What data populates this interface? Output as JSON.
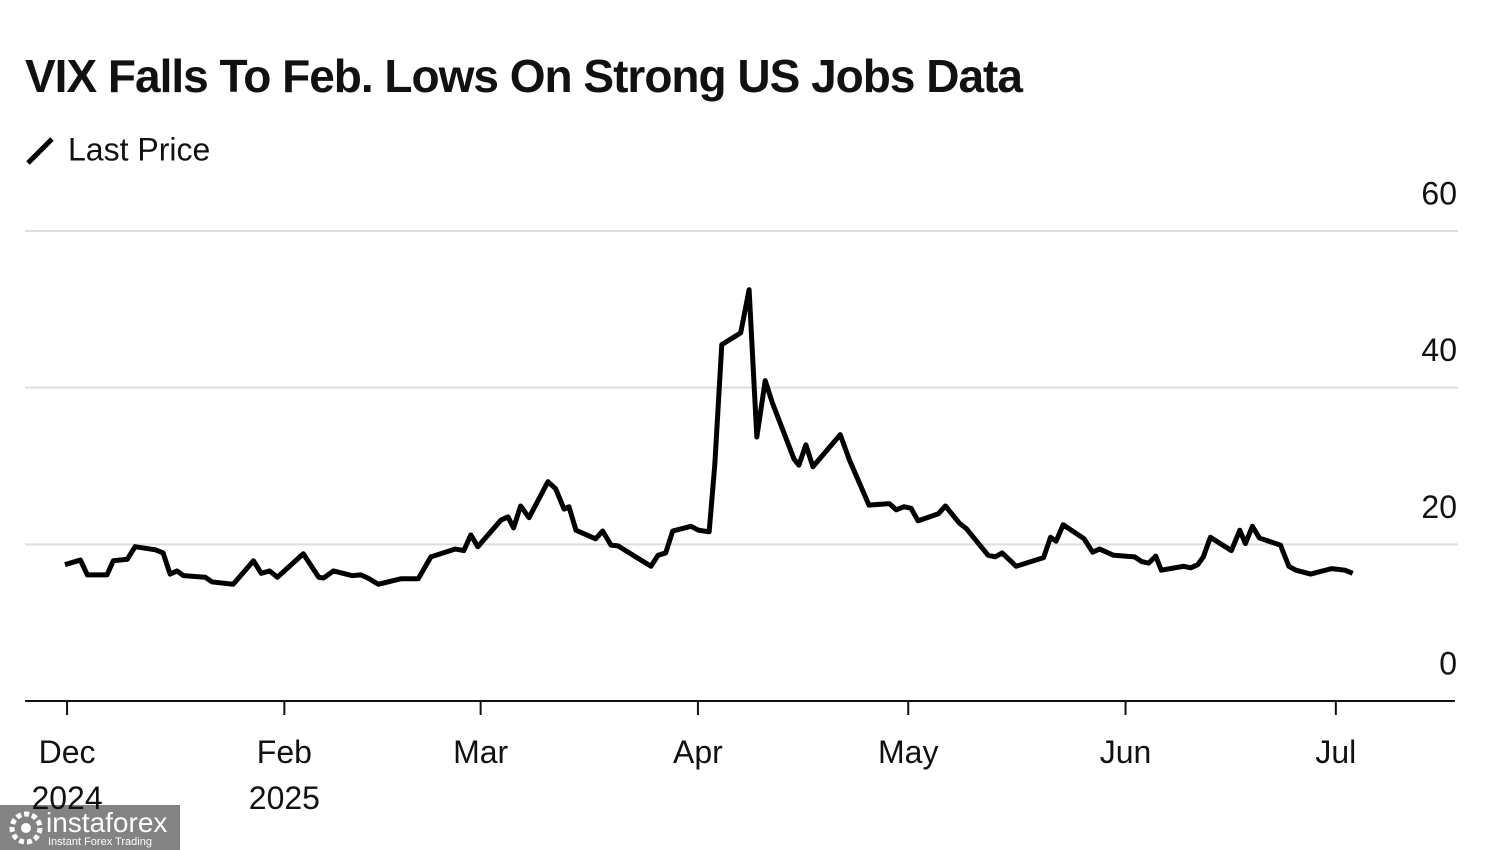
{
  "chart_data": {
    "type": "line",
    "title": "VIX Falls To Feb. Lows On Strong US Jobs Data",
    "x": [
      -0.3,
      1.9,
      2.9,
      5.7,
      6.6,
      8.6,
      9.7,
      12.6,
      13.7,
      14.7,
      15.7,
      16.6,
      19.7,
      20.7,
      23.7,
      26.6,
      27.7,
      28.9,
      30,
      33.7,
      35.9,
      36.6,
      38,
      40.7,
      41.9,
      42.9,
      44.4,
      47.6,
      50.1,
      51.9,
      55.4,
      56.6,
      57.6,
      58.6,
      61.9,
      62.9,
      63.7,
      64.7,
      65.9,
      68.6,
      69.7,
      70.9,
      71.6,
      72.6,
      75.4,
      76.4,
      77.6,
      78.6,
      83.3,
      84.3,
      85.4,
      86.4,
      89,
      90.1,
      91.6,
      92.4,
      93.4,
      96.1,
      97.3,
      98.4,
      99.6,
      100.6,
      103.7,
      104.4,
      105.4,
      106.4,
      110.3,
      111.6,
      114.4,
      117.3,
      118.3,
      119.4,
      120.4,
      121.4,
      124.3,
      125.3,
      127.3,
      128.3,
      131.4,
      132.4,
      133.4,
      135.4,
      139.3,
      140.3,
      141.1,
      142.1,
      145.1,
      146.3,
      147.3,
      149.3,
      152.3,
      153.3,
      154.3,
      155.3,
      156.1,
      159.3,
      160.3,
      161.3,
      162.1,
      163.1,
      166.1,
      167.3,
      168.1,
      169.1,
      170.1,
      173.1,
      174.3,
      175.3,
      177.4,
      180.4,
      182.3,
      183.4
    ],
    "series": [
      {
        "name": "Last Price",
        "color": "#000000",
        "values": [
          17.4,
          18.0,
          16.1,
          16.1,
          17.9,
          18.1,
          19.7,
          19.3,
          18.9,
          16.2,
          16.6,
          16.0,
          15.8,
          15.2,
          14.9,
          17.9,
          16.3,
          16.6,
          15.8,
          18.8,
          15.8,
          15.7,
          16.6,
          16.0,
          16.1,
          15.7,
          14.9,
          15.6,
          15.6,
          18.4,
          19.4,
          19.2,
          21.2,
          19.7,
          23.1,
          23.5,
          22.1,
          24.9,
          23.4,
          28.0,
          27.1,
          24.5,
          24.8,
          21.8,
          20.7,
          21.7,
          19.9,
          19.8,
          17.2,
          18.6,
          18.9,
          21.7,
          22.3,
          21.8,
          21.6,
          30.1,
          45.5,
          47.0,
          52.5,
          33.7,
          40.9,
          38.1,
          30.9,
          30.1,
          32.7,
          29.9,
          34.0,
          30.8,
          25.0,
          25.2,
          24.4,
          24.8,
          24.6,
          23.0,
          23.9,
          24.9,
          22.7,
          22.0,
          18.6,
          18.4,
          18.9,
          17.2,
          18.3,
          20.9,
          20.4,
          22.5,
          20.7,
          19.0,
          19.4,
          18.6,
          18.4,
          17.8,
          17.6,
          18.5,
          16.7,
          17.2,
          17.0,
          17.4,
          18.4,
          20.9,
          19.2,
          21.8,
          20.1,
          22.3,
          20.8,
          19.9,
          17.2,
          16.7,
          16.2,
          16.9,
          16.7,
          16.3
        ]
      }
    ],
    "xlim": [
      -6,
      198
    ],
    "xticks": [
      {
        "value": 0,
        "label": "Dec 2024"
      },
      {
        "value": 31,
        "label": "Feb 2025"
      },
      {
        "value": 59,
        "label": "Mar"
      },
      {
        "value": 90,
        "label": "Apr"
      },
      {
        "value": 120,
        "label": "May"
      },
      {
        "value": 151,
        "label": "Jun"
      },
      {
        "value": 181,
        "label": "Jul"
      }
    ],
    "ylim": [
      0,
      60
    ],
    "yticks": [
      0,
      20,
      40,
      60
    ],
    "grid": true
  },
  "watermark": {
    "name": "instaforex",
    "tagline": "Instant Forex Trading"
  }
}
